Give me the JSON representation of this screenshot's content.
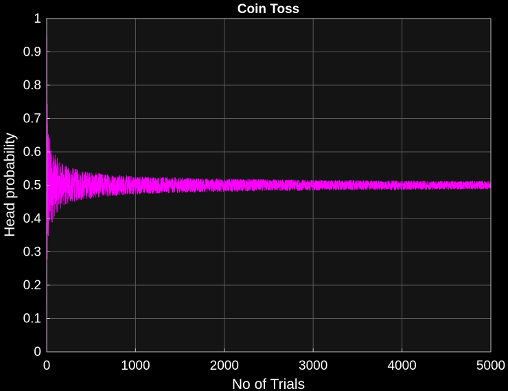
{
  "chart_data": {
    "type": "line",
    "title": "Coin Toss",
    "xlabel": "No of Trials",
    "ylabel": "Head probability",
    "xlim": [
      0,
      5000
    ],
    "ylim": [
      0,
      1
    ],
    "xticks": [
      0,
      1000,
      2000,
      3000,
      4000,
      5000
    ],
    "yticks": [
      0,
      0.1,
      0.2,
      0.3,
      0.4,
      0.5,
      0.6,
      0.7,
      0.8,
      0.9,
      1
    ],
    "xtick_labels": [
      "0",
      "1000",
      "2000",
      "3000",
      "4000",
      "5000"
    ],
    "ytick_labels": [
      "0",
      "0.1",
      "0.2",
      "0.3",
      "0.4",
      "0.5",
      "0.6",
      "0.7",
      "0.8",
      "0.9",
      "1"
    ],
    "grid": true,
    "legend": "none",
    "series": [
      {
        "color": "#ff00ff",
        "x": [
          1,
          2,
          5,
          10,
          20,
          40,
          60,
          80,
          100,
          150,
          200,
          300,
          400,
          500,
          600,
          800,
          1000,
          1500,
          2000,
          2500,
          3000,
          3500,
          4000,
          4500,
          5000
        ],
        "values": [
          1,
          0.5,
          0.6,
          0.7,
          0.35,
          0.55,
          0.45,
          0.58,
          0.42,
          0.54,
          0.47,
          0.52,
          0.48,
          0.51,
          0.49,
          0.52,
          0.49,
          0.51,
          0.5,
          0.49,
          0.51,
          0.5,
          0.51,
          0.5,
          0.5
        ]
      }
    ]
  },
  "colors": {
    "background": "#000000",
    "plot_area": "#141414",
    "grid": "#5a5a5a",
    "axis": "#bfbfbf",
    "text": "#ffffff",
    "series": "#ff00ff"
  }
}
